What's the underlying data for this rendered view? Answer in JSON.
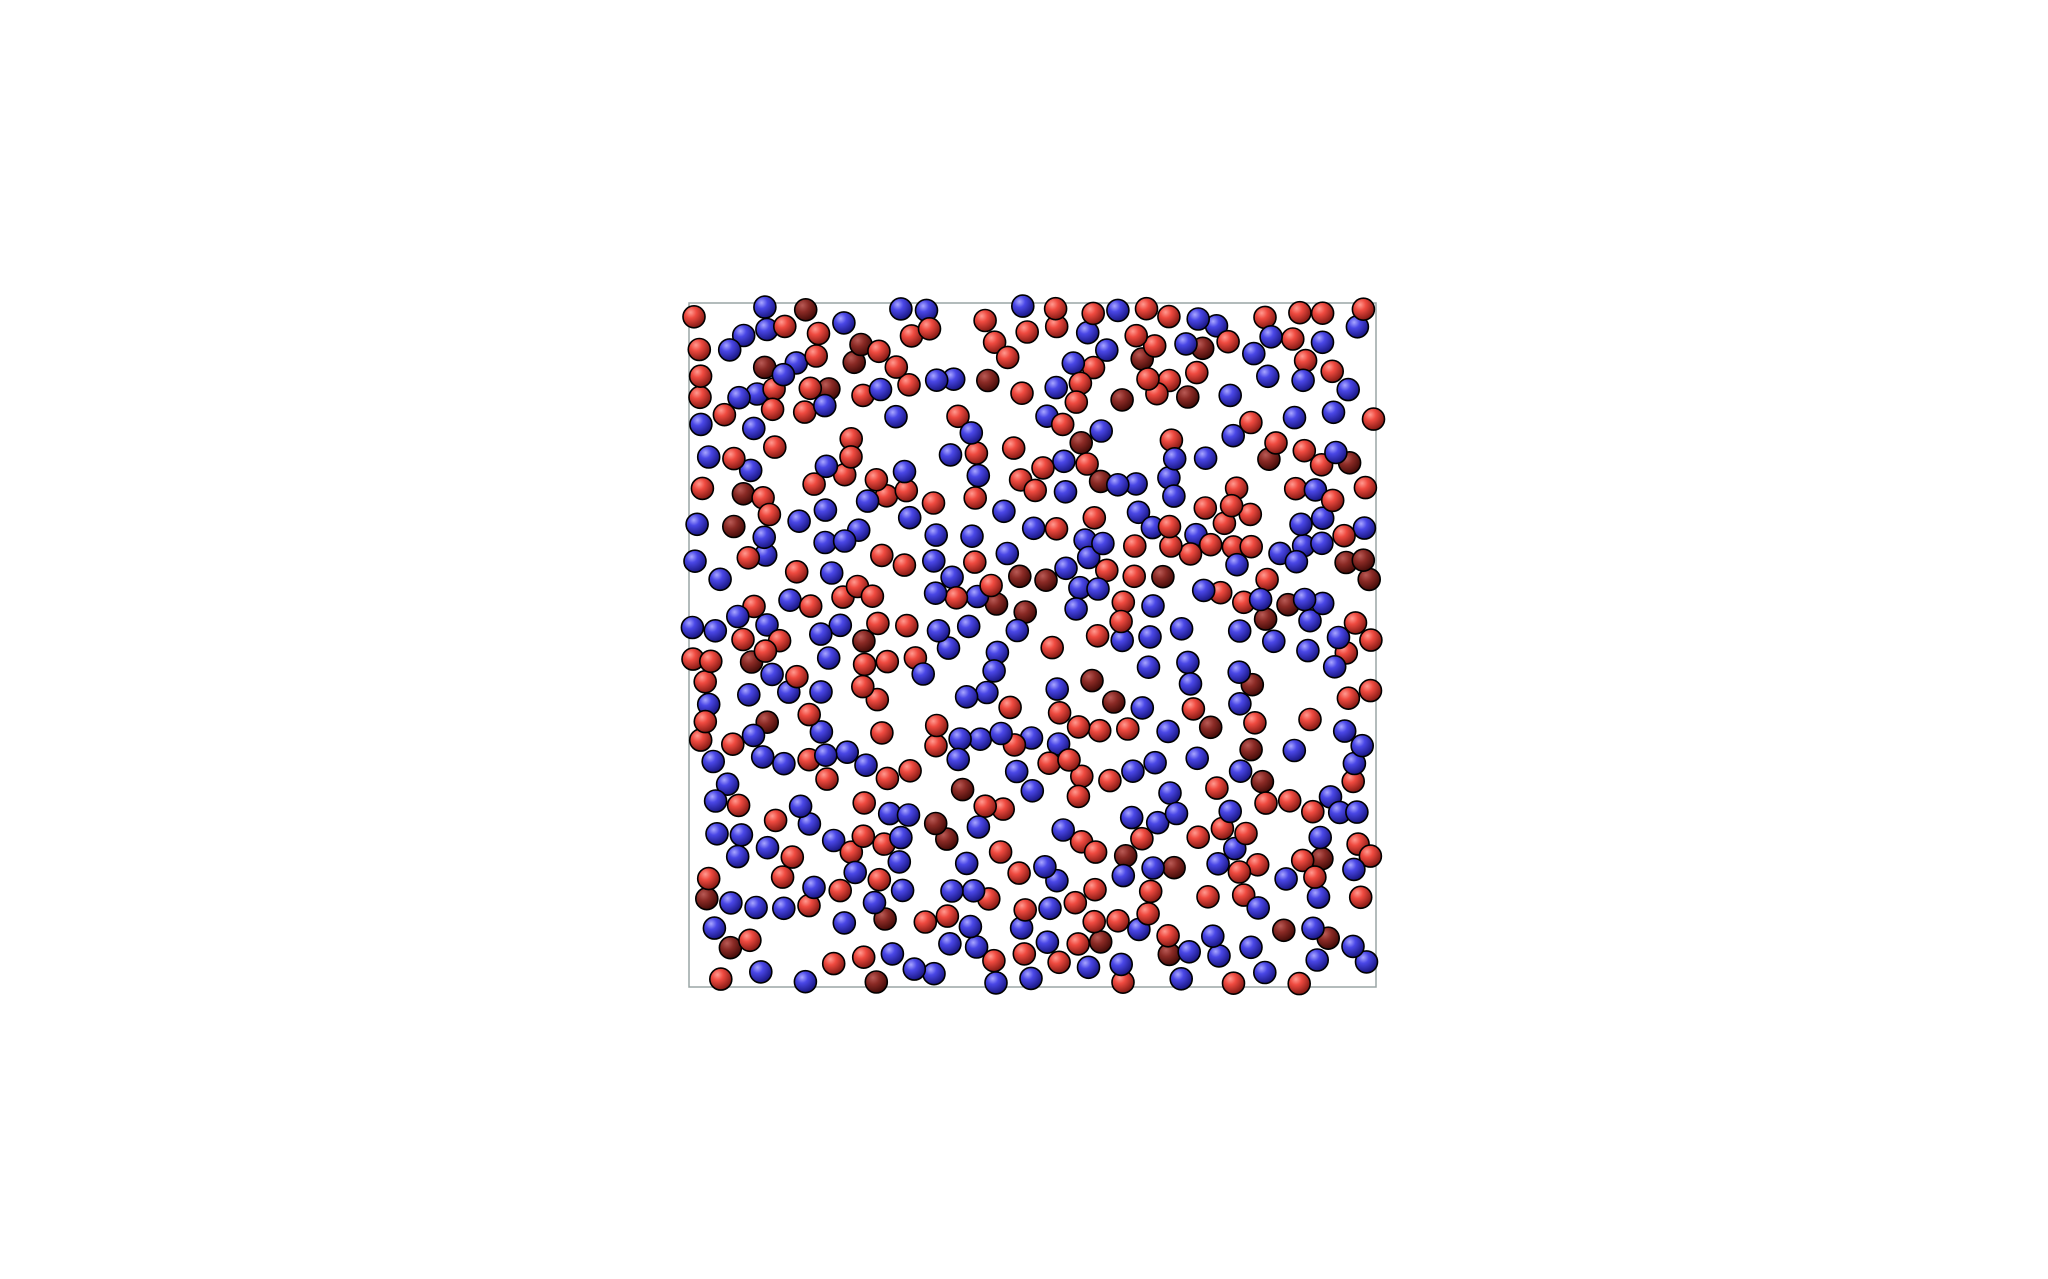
{
  "colors": {
    "background": "#ffffff",
    "box_outline": "#9aa5a5",
    "red_species": "#e8473f",
    "blue_species": "#4a47e6",
    "sphere_outline": "#000000"
  },
  "scene": {
    "description_kind": "particle-simulation-render",
    "sphere_species": [
      "red",
      "blue"
    ],
    "sphere_count_approx": 500
  }
}
